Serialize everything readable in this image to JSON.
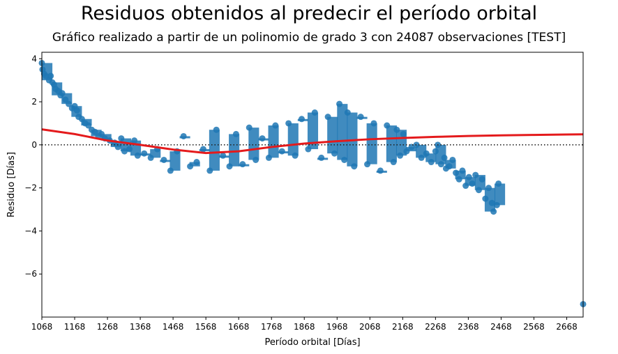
{
  "figure": {
    "suptitle": "Residuos obtenidos al predecir el período orbital",
    "subtitle": "Gráfico realizado a partir de un polinomio de grado 3  con 24087 observaciones [TEST]"
  },
  "colors": {
    "scatter": "#1f77b4",
    "fit_line": "#e41a1c",
    "zero_line": "#222222"
  },
  "chart_data": {
    "type": "scatter",
    "title": "Gráfico realizado a partir de un polinomio de grado 3  con 24087 observaciones [TEST]",
    "xlabel": "Período orbital [Días]",
    "ylabel": "Residuo [Días]",
    "xlim": [
      1068,
      2718
    ],
    "ylim": [
      -8,
      4.3
    ],
    "x_ticks": [
      1068,
      1168,
      1268,
      1368,
      1468,
      1568,
      1668,
      1768,
      1868,
      1968,
      2068,
      2168,
      2268,
      2368,
      2468,
      2568,
      2668
    ],
    "y_ticks": [
      -6,
      -4,
      -2,
      0,
      2,
      4
    ],
    "reference_line": {
      "y": 0,
      "style": "dotted"
    },
    "grid": false,
    "series": [
      {
        "kind": "scatter_points",
        "points": [
          [
            1068,
            3.8
          ],
          [
            1070,
            3.5
          ],
          [
            1075,
            3.3
          ],
          [
            1080,
            3.2
          ],
          [
            1090,
            3.0
          ],
          [
            1095,
            3.2
          ],
          [
            1100,
            2.9
          ],
          [
            1105,
            2.8
          ],
          [
            1110,
            2.6
          ],
          [
            1118,
            2.5
          ],
          [
            1125,
            2.3
          ],
          [
            1130,
            2.4
          ],
          [
            1140,
            2.1
          ],
          [
            1150,
            1.9
          ],
          [
            1160,
            1.7
          ],
          [
            1168,
            1.8
          ],
          [
            1175,
            1.6
          ],
          [
            1180,
            1.3
          ],
          [
            1190,
            1.2
          ],
          [
            1200,
            1.0
          ],
          [
            1210,
            0.9
          ],
          [
            1220,
            0.7
          ],
          [
            1230,
            0.6
          ],
          [
            1240,
            0.4
          ],
          [
            1250,
            0.5
          ],
          [
            1260,
            0.3
          ],
          [
            1275,
            0.2
          ],
          [
            1290,
            0.1
          ],
          [
            1300,
            -0.1
          ],
          [
            1310,
            0.3
          ],
          [
            1320,
            -0.3
          ],
          [
            1335,
            -0.2
          ],
          [
            1350,
            0.2
          ],
          [
            1360,
            -0.5
          ],
          [
            1380,
            -0.4
          ],
          [
            1400,
            -0.6
          ],
          [
            1420,
            -0.2
          ],
          [
            1440,
            -0.7
          ],
          [
            1460,
            -1.2
          ],
          [
            1480,
            -0.3
          ],
          [
            1500,
            0.4
          ],
          [
            1520,
            -1.0
          ],
          [
            1540,
            -0.8
          ],
          [
            1560,
            -0.2
          ],
          [
            1580,
            -1.2
          ],
          [
            1600,
            0.7
          ],
          [
            1620,
            -0.5
          ],
          [
            1640,
            -1.0
          ],
          [
            1660,
            0.5
          ],
          [
            1680,
            -0.9
          ],
          [
            1700,
            0.8
          ],
          [
            1720,
            -0.7
          ],
          [
            1740,
            0.3
          ],
          [
            1760,
            -0.6
          ],
          [
            1780,
            0.9
          ],
          [
            1800,
            -0.3
          ],
          [
            1820,
            1.0
          ],
          [
            1840,
            -0.5
          ],
          [
            1860,
            1.2
          ],
          [
            1880,
            -0.2
          ],
          [
            1900,
            1.5
          ],
          [
            1920,
            -0.6
          ],
          [
            1940,
            1.3
          ],
          [
            1960,
            -0.4
          ],
          [
            1975,
            1.9
          ],
          [
            1990,
            -0.7
          ],
          [
            2000,
            1.5
          ],
          [
            2020,
            -1.0
          ],
          [
            2040,
            1.3
          ],
          [
            2060,
            -0.9
          ],
          [
            2080,
            1.0
          ],
          [
            2100,
            -1.2
          ],
          [
            2120,
            0.9
          ],
          [
            2140,
            -0.8
          ],
          [
            2150,
            0.7
          ],
          [
            2160,
            -0.5
          ],
          [
            2170,
            0.5
          ],
          [
            2180,
            -0.3
          ],
          [
            2195,
            -0.1
          ],
          [
            2210,
            0.0
          ],
          [
            2225,
            -0.6
          ],
          [
            2240,
            -0.4
          ],
          [
            2255,
            -0.8
          ],
          [
            2268,
            -0.3
          ],
          [
            2275,
            0.0
          ],
          [
            2285,
            -0.9
          ],
          [
            2295,
            -0.6
          ],
          [
            2300,
            -1.1
          ],
          [
            2310,
            -1.0
          ],
          [
            2320,
            -0.7
          ],
          [
            2330,
            -1.3
          ],
          [
            2340,
            -1.6
          ],
          [
            2350,
            -1.2
          ],
          [
            2360,
            -1.9
          ],
          [
            2370,
            -1.5
          ],
          [
            2380,
            -1.8
          ],
          [
            2390,
            -1.4
          ],
          [
            2400,
            -2.1
          ],
          [
            2410,
            -1.6
          ],
          [
            2420,
            -2.5
          ],
          [
            2430,
            -2.0
          ],
          [
            2440,
            -2.7
          ],
          [
            2445,
            -3.1
          ],
          [
            2455,
            -2.8
          ],
          [
            2460,
            -1.8
          ],
          [
            2718,
            -7.4
          ]
        ]
      },
      {
        "kind": "fit_line",
        "points": [
          [
            1068,
            0.72
          ],
          [
            1168,
            0.5
          ],
          [
            1268,
            0.2
          ],
          [
            1368,
            0.0
          ],
          [
            1468,
            -0.22
          ],
          [
            1568,
            -0.38
          ],
          [
            1668,
            -0.3
          ],
          [
            1768,
            -0.1
          ],
          [
            1868,
            0.06
          ],
          [
            1968,
            0.17
          ],
          [
            2068,
            0.26
          ],
          [
            2168,
            0.32
          ],
          [
            2268,
            0.37
          ],
          [
            2368,
            0.41
          ],
          [
            2468,
            0.44
          ],
          [
            2568,
            0.46
          ],
          [
            2668,
            0.48
          ],
          [
            2718,
            0.49
          ]
        ]
      }
    ]
  }
}
